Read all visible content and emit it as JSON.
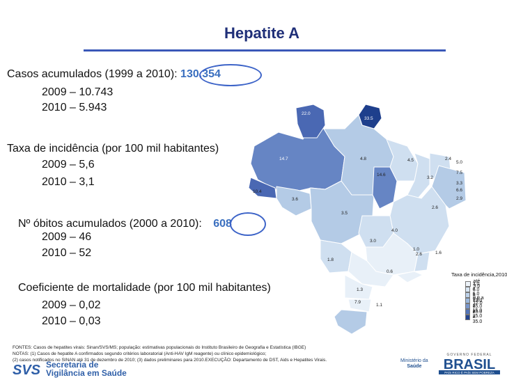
{
  "title": "Hepatite A",
  "stats": {
    "cases_label": "Casos acumulados (1999 a 2010):",
    "cases_value": "130.354",
    "cases_2009": "2009 – 10.743",
    "cases_2010": "2010 –  5.943",
    "incidence_label": "Taxa de incidência (por 100 mil habitantes)",
    "incidence_2009": "2009 – 5,6",
    "incidence_2010": "2010 – 3,1",
    "deaths_label": "Nº óbitos acumulados (2000 a 2010):",
    "deaths_value": "608",
    "deaths_2009": "2009 – 46",
    "deaths_2010": "2010 – 52",
    "mortality_label": "Coeficiente de mortalidade (por 100 mil habitantes)",
    "mortality_2009": "2009 – 0,02",
    "mortality_2010": "2010 – 0,03"
  },
  "map": {
    "state_values": [
      "22.0",
      "33.5",
      "14.7",
      "4.8",
      "4.5",
      "2.4",
      "5.0",
      "7.5",
      "3.2",
      "3.3",
      "6.6",
      "2.9",
      "10.4",
      "3.6",
      "14.6",
      "3.5",
      "2.6",
      "4.0",
      "3.0",
      "1.0",
      "1.6",
      "1.8",
      "0.6",
      "2.6",
      "1.3",
      "1.1",
      "7.9"
    ],
    "colors": {
      "lightest": "#e8f0f8",
      "light": "#cfdff0",
      "mid_light": "#b4cbe6",
      "mid": "#8fafd8",
      "mid_dark": "#6685c4",
      "dark": "#4a68b3",
      "darkest": "#1e3f8c"
    }
  },
  "legend": {
    "title": "Taxa de incidência,2010",
    "items": [
      "até 3.0",
      "3.0 a 6.0",
      "6.0 a 9.0",
      "9.0 a 12.0",
      "12.0 a 15.0",
      "15.0 a 25.0",
      "25.0 a 35.0"
    ],
    "colors": [
      "#eef4fa",
      "#d8e6f3",
      "#bdd2ea",
      "#9cb9de",
      "#7896cc",
      "#5374b8",
      "#23448f"
    ]
  },
  "footer": {
    "line1": "FONTES: Casos de hepatites virais: Sinan/SVS/MS; população: estimativas populacionais do Instituto Brasileiro de Geografia e Estatística (IBGE)",
    "line2": "NOTAS: (1) Casos de hepatite A confirmados segundo critérios laboratorial (Anti-HAV IgM reagente) ou clínico epidemiológico;",
    "line3": "(2) casos notificados no SINAN até 31 de dezembro de 2010; (3) dados preliminares para 2010.EXECUÇÃO: Departamento de DST, Aids e Hepatites Virais."
  },
  "logos": {
    "svs_mark": "SVS",
    "svs_line1": "Secretaria de",
    "svs_line2": "Vigilância em Saúde",
    "ministry_line1": "Ministério da",
    "ministry_line2": "Saúde",
    "gov_top": "GOVERNO FEDERAL",
    "brasil": "BRASIL",
    "brasil_tagline": "PAÍS RICO É PAÍS SEM POBREZA"
  }
}
